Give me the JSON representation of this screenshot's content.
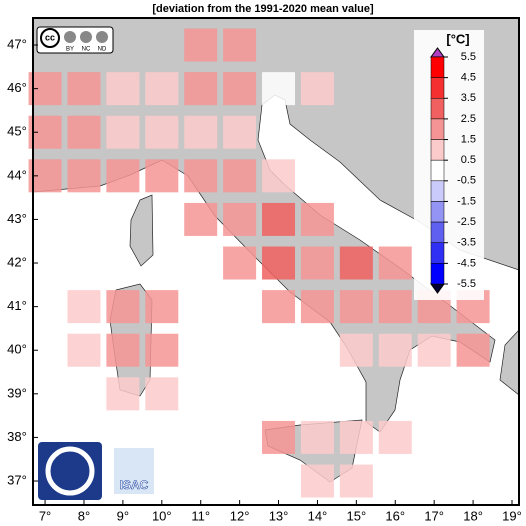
{
  "title": "[deviation from the 1991-2020 mean value]",
  "logos": {
    "cc": "cc",
    "cc_terms": [
      "BY",
      "NC",
      "ND"
    ],
    "institute": "ISAC"
  },
  "axes": {
    "xlim": [
      6.69,
      19.18
    ],
    "ylim": [
      36.45,
      47.62
    ],
    "xticks": [
      {
        "value": 7,
        "label": "7°"
      },
      {
        "value": 8,
        "label": "8°"
      },
      {
        "value": 9,
        "label": "9°"
      },
      {
        "value": 10,
        "label": "10°"
      },
      {
        "value": 11,
        "label": "11°"
      },
      {
        "value": 12,
        "label": "12°"
      },
      {
        "value": 13,
        "label": "13°"
      },
      {
        "value": 14,
        "label": "14°"
      },
      {
        "value": 15,
        "label": "15°"
      },
      {
        "value": 16,
        "label": "16°"
      },
      {
        "value": 17,
        "label": "17°"
      },
      {
        "value": 18,
        "label": "18°"
      },
      {
        "value": 19,
        "label": "19°"
      }
    ],
    "yticks": [
      {
        "value": 37,
        "label": "37°"
      },
      {
        "value": 38,
        "label": "38°"
      },
      {
        "value": 39,
        "label": "39°"
      },
      {
        "value": 40,
        "label": "40°"
      },
      {
        "value": 41,
        "label": "41°"
      },
      {
        "value": 42,
        "label": "42°"
      },
      {
        "value": 43,
        "label": "43°"
      },
      {
        "value": 44,
        "label": "44°"
      },
      {
        "value": 45,
        "label": "45°"
      },
      {
        "value": 46,
        "label": "46°"
      },
      {
        "value": 47,
        "label": "47°"
      }
    ]
  },
  "colorbar": {
    "unit": "[°C]",
    "ticks": [
      5.5,
      4.5,
      3.5,
      2.5,
      1.5,
      0.5,
      -0.5,
      -1.5,
      -2.5,
      -3.5,
      -4.5,
      -5.5
    ],
    "colors": [
      "#ff0000",
      "#f53030",
      "#f06060",
      "#f49494",
      "#fbcaca",
      "#ffffff",
      "#cacafb",
      "#9494f4",
      "#6060f0",
      "#3030f5",
      "#0000ff"
    ]
  },
  "cells": [
    {
      "lon": 11,
      "lat": 47,
      "value": 1.7
    },
    {
      "lon": 12,
      "lat": 47,
      "value": 1.8
    },
    {
      "lon": 7,
      "lat": 46,
      "value": 1.8
    },
    {
      "lon": 8,
      "lat": 46,
      "value": 1.8
    },
    {
      "lon": 9,
      "lat": 46,
      "value": 1.4
    },
    {
      "lon": 10,
      "lat": 46,
      "value": 1.3
    },
    {
      "lon": 11,
      "lat": 46,
      "value": 2.0
    },
    {
      "lon": 12,
      "lat": 46,
      "value": 1.8
    },
    {
      "lon": 13,
      "lat": 46,
      "value": 0.3
    },
    {
      "lon": 14,
      "lat": 46,
      "value": 1.2
    },
    {
      "lon": 7,
      "lat": 45,
      "value": 1.9
    },
    {
      "lon": 8,
      "lat": 45,
      "value": 1.8
    },
    {
      "lon": 9,
      "lat": 45,
      "value": 1.2
    },
    {
      "lon": 10,
      "lat": 45,
      "value": 1.4
    },
    {
      "lon": 11,
      "lat": 45,
      "value": 1.3
    },
    {
      "lon": 12,
      "lat": 45,
      "value": 1.5
    },
    {
      "lon": 7,
      "lat": 44,
      "value": 2.0
    },
    {
      "lon": 8,
      "lat": 44,
      "value": 2.0
    },
    {
      "lon": 9,
      "lat": 44,
      "value": 2.0
    },
    {
      "lon": 10,
      "lat": 44,
      "value": 1.9
    },
    {
      "lon": 11,
      "lat": 44,
      "value": 1.8
    },
    {
      "lon": 12,
      "lat": 44,
      "value": 2.0
    },
    {
      "lon": 13,
      "lat": 44,
      "value": 1.1
    },
    {
      "lon": 11,
      "lat": 43,
      "value": 2.2
    },
    {
      "lon": 12,
      "lat": 43,
      "value": 2.0
    },
    {
      "lon": 13,
      "lat": 43,
      "value": 2.8
    },
    {
      "lon": 14,
      "lat": 43,
      "value": 1.8
    },
    {
      "lon": 12,
      "lat": 42,
      "value": 2.0
    },
    {
      "lon": 13,
      "lat": 42,
      "value": 2.9
    },
    {
      "lon": 14,
      "lat": 42,
      "value": 2.1
    },
    {
      "lon": 15,
      "lat": 42,
      "value": 2.8
    },
    {
      "lon": 16,
      "lat": 42,
      "value": 2.0
    },
    {
      "lon": 8,
      "lat": 41,
      "value": 1.2
    },
    {
      "lon": 9,
      "lat": 41,
      "value": 2.0
    },
    {
      "lon": 10,
      "lat": 41,
      "value": 1.9
    },
    {
      "lon": 13,
      "lat": 41,
      "value": 1.9
    },
    {
      "lon": 14,
      "lat": 41,
      "value": 1.8
    },
    {
      "lon": 15,
      "lat": 41,
      "value": 1.7
    },
    {
      "lon": 16,
      "lat": 41,
      "value": 1.8
    },
    {
      "lon": 17,
      "lat": 41,
      "value": 1.7
    },
    {
      "lon": 18,
      "lat": 41,
      "value": 1.8
    },
    {
      "lon": 8,
      "lat": 40,
      "value": 1.3
    },
    {
      "lon": 9,
      "lat": 40,
      "value": 2.1
    },
    {
      "lon": 10,
      "lat": 40,
      "value": 2.0
    },
    {
      "lon": 15,
      "lat": 40,
      "value": 1.3
    },
    {
      "lon": 16,
      "lat": 40,
      "value": 1.3
    },
    {
      "lon": 17,
      "lat": 40,
      "value": 1.4
    },
    {
      "lon": 18,
      "lat": 40,
      "value": 1.9
    },
    {
      "lon": 9,
      "lat": 39,
      "value": 1.2
    },
    {
      "lon": 10,
      "lat": 39,
      "value": 1.2
    },
    {
      "lon": 13,
      "lat": 38,
      "value": 2.0
    },
    {
      "lon": 14,
      "lat": 38,
      "value": 1.3
    },
    {
      "lon": 15,
      "lat": 38,
      "value": 1.3
    },
    {
      "lon": 16,
      "lat": 38,
      "value": 1.3
    },
    {
      "lon": 14,
      "lat": 37,
      "value": 1.2
    },
    {
      "lon": 15,
      "lat": 37,
      "value": 1.1
    }
  ]
}
